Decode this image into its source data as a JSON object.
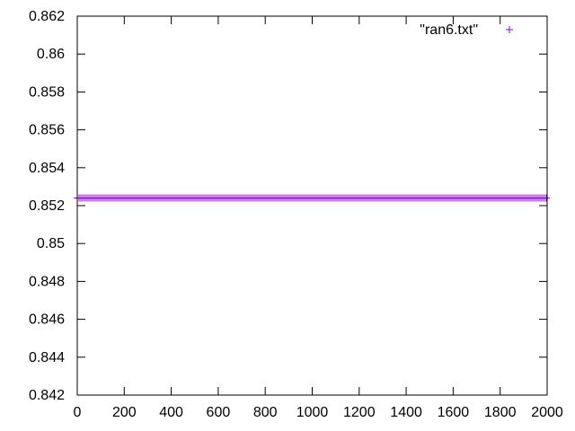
{
  "chart_data": {
    "type": "scatter",
    "title": "",
    "xlabel": "",
    "ylabel": "",
    "xlim": [
      0,
      2000
    ],
    "ylim": [
      0.842,
      0.862
    ],
    "x_ticks": [
      "0",
      "200",
      "400",
      "600",
      "800",
      "1000",
      "1200",
      "1400",
      "1600",
      "1800",
      "2000"
    ],
    "y_ticks": [
      "0.842",
      "0.844",
      "0.846",
      "0.848",
      "0.85",
      "0.852",
      "0.854",
      "0.856",
      "0.858",
      "0.86",
      "0.862"
    ],
    "grid": false,
    "legend_position": "top-right",
    "series": [
      {
        "name": "\"ran6.txt\"",
        "marker": "+",
        "color": "#9400d3",
        "x_range": [
          0,
          2000
        ],
        "y_constant": 0.8524
      }
    ]
  },
  "legend": {
    "label": "\"ran6.txt\""
  }
}
